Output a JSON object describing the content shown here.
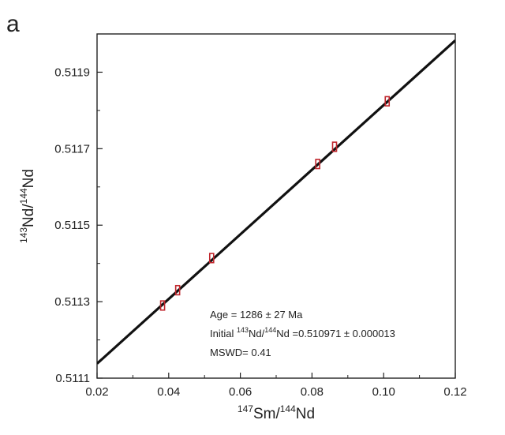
{
  "panel_label": "a",
  "chart_data": {
    "type": "scatter",
    "xlim": [
      0.02,
      0.12
    ],
    "ylim": [
      0.5111,
      0.512
    ],
    "x_ticks": [
      0.02,
      0.04,
      0.06,
      0.08,
      0.1,
      0.12
    ],
    "x_tick_labels": [
      "0.02",
      "0.04",
      "0.06",
      "0.08",
      "0.10",
      "0.12"
    ],
    "y_ticks": [
      0.5111,
      0.5113,
      0.5115,
      0.5117,
      0.5119
    ],
    "y_tick_labels": [
      "0.5111",
      "0.5113",
      "0.5115",
      "0.5117",
      "0.5119"
    ],
    "xlabel": {
      "pre_sup": "147",
      "a": "Sm/",
      "mid_sup": "144",
      "b": "Nd"
    },
    "ylabel": {
      "pre_sup": "143",
      "a": "Nd/",
      "mid_sup": "144",
      "b": "Nd"
    },
    "grid": false,
    "series": [
      {
        "marker_color": "#c0272d",
        "marker": "error-box",
        "x": [
          0.0383,
          0.0425,
          0.052,
          0.0816,
          0.0863,
          0.101
        ],
        "y": [
          0.51129,
          0.51133,
          0.511414,
          0.51166,
          0.511705,
          0.511824
        ],
        "y_err": [
          1.2e-05,
          1.2e-05,
          1.2e-05,
          1.2e-05,
          1.2e-05,
          1.2e-05
        ]
      }
    ],
    "fit_line": {
      "x": [
        0.02,
        0.12
      ],
      "y": [
        0.511138,
        0.511983
      ],
      "color": "#111111"
    },
    "annotation": {
      "line1": "Age = 1286 ± 27 Ma",
      "line2_a": "Initial ",
      "line2_sup1": "143",
      "line2_b": "Nd/",
      "line2_sup2": "144",
      "line2_c": "Nd =0.510971 ± 0.000013",
      "line3": "MSWD= 0.41"
    }
  }
}
